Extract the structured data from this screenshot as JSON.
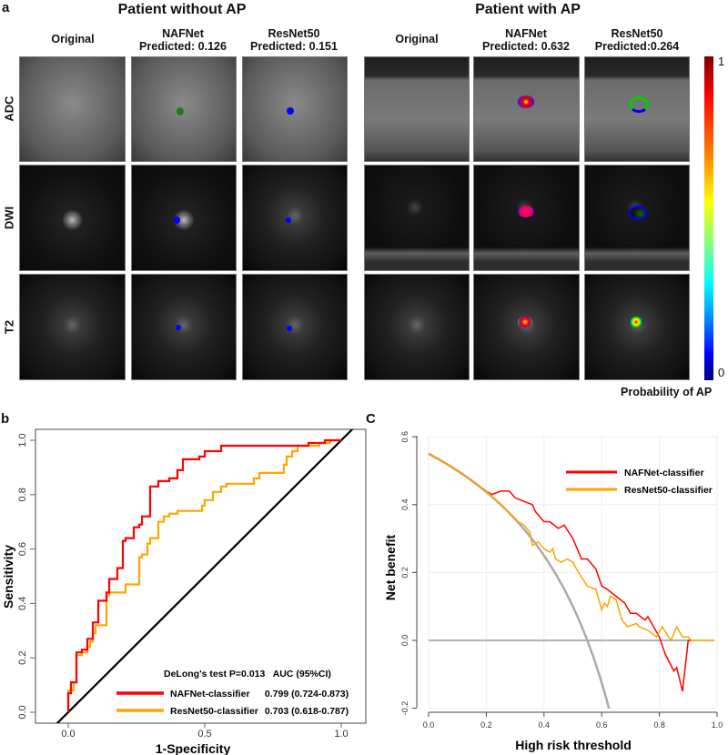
{
  "panel_labels": {
    "a": "a",
    "b": "b",
    "c": "C"
  },
  "panel_a": {
    "group_left": {
      "title": "Patient without AP",
      "columns": [
        {
          "line1": "Original",
          "line2": ""
        },
        {
          "line1": "NAFNet",
          "line2": "Predicted: 0.126"
        },
        {
          "line1": "ResNet50",
          "line2": "Predicted: 0.151"
        }
      ]
    },
    "group_right": {
      "title": "Patient with AP",
      "columns": [
        {
          "line1": "Original",
          "line2": ""
        },
        {
          "line1": "NAFNet",
          "line2": "Predicted: 0.632"
        },
        {
          "line1": "ResNet50",
          "line2": "Predicted:0.264"
        }
      ]
    },
    "rows": [
      "ADC",
      "DWI",
      "T2"
    ],
    "colorbar": {
      "max_label": "1",
      "min_label": "0",
      "title": "Probability of AP"
    }
  },
  "chart_data": [
    {
      "type": "line",
      "title": "",
      "xlabel": "1-Specificity",
      "ylabel": "Sensitivity",
      "xlim": [
        -0.1,
        1.07
      ],
      "ylim": [
        -0.04,
        1.04
      ],
      "xticks": [
        "0.0",
        "0.5",
        "1.0"
      ],
      "yticks": [
        "0.0",
        "0.2",
        "0.4",
        "0.6",
        "0.8",
        "1.0"
      ],
      "legend_header": "DeLong's test P=0.013   AUC (95%CI)",
      "legend_position": "bottom-right",
      "reference_line": {
        "name": "chance",
        "color": "#000000"
      },
      "series": [
        {
          "name": "NAFNet-classifier",
          "auc": "0.799 (0.724-0.873)",
          "color": "#ff0000",
          "points": [
            [
              0,
              0
            ],
            [
              0,
              0.07
            ],
            [
              0.01,
              0.07
            ],
            [
              0.01,
              0.11
            ],
            [
              0.03,
              0.11
            ],
            [
              0.03,
              0.22
            ],
            [
              0.05,
              0.22
            ],
            [
              0.05,
              0.23
            ],
            [
              0.07,
              0.23
            ],
            [
              0.07,
              0.27
            ],
            [
              0.09,
              0.27
            ],
            [
              0.09,
              0.33
            ],
            [
              0.11,
              0.33
            ],
            [
              0.11,
              0.41
            ],
            [
              0.14,
              0.41
            ],
            [
              0.14,
              0.44
            ],
            [
              0.15,
              0.44
            ],
            [
              0.15,
              0.49
            ],
            [
              0.18,
              0.49
            ],
            [
              0.18,
              0.53
            ],
            [
              0.2,
              0.53
            ],
            [
              0.2,
              0.63
            ],
            [
              0.21,
              0.63
            ],
            [
              0.21,
              0.64
            ],
            [
              0.24,
              0.64
            ],
            [
              0.24,
              0.68
            ],
            [
              0.26,
              0.68
            ],
            [
              0.26,
              0.69
            ],
            [
              0.27,
              0.69
            ],
            [
              0.27,
              0.72
            ],
            [
              0.3,
              0.72
            ],
            [
              0.3,
              0.83
            ],
            [
              0.33,
              0.83
            ],
            [
              0.33,
              0.85
            ],
            [
              0.37,
              0.85
            ],
            [
              0.37,
              0.86
            ],
            [
              0.4,
              0.86
            ],
            [
              0.4,
              0.89
            ],
            [
              0.42,
              0.89
            ],
            [
              0.42,
              0.93
            ],
            [
              0.48,
              0.93
            ],
            [
              0.48,
              0.94
            ],
            [
              0.5,
              0.94
            ],
            [
              0.5,
              0.96
            ],
            [
              0.56,
              0.96
            ],
            [
              0.56,
              0.98
            ],
            [
              0.88,
              0.98
            ],
            [
              0.88,
              0.99
            ],
            [
              0.94,
              0.99
            ],
            [
              0.94,
              1.0
            ],
            [
              1,
              1
            ]
          ]
        },
        {
          "name": "ResNet50-classifier",
          "auc": "0.703 (0.618-0.787)",
          "color": "#ffa500",
          "points": [
            [
              0,
              0
            ],
            [
              0,
              0.08
            ],
            [
              0.02,
              0.08
            ],
            [
              0.02,
              0.11
            ],
            [
              0.03,
              0.11
            ],
            [
              0.03,
              0.21
            ],
            [
              0.05,
              0.21
            ],
            [
              0.05,
              0.22
            ],
            [
              0.07,
              0.22
            ],
            [
              0.07,
              0.24
            ],
            [
              0.08,
              0.24
            ],
            [
              0.08,
              0.26
            ],
            [
              0.09,
              0.26
            ],
            [
              0.09,
              0.29
            ],
            [
              0.1,
              0.29
            ],
            [
              0.1,
              0.32
            ],
            [
              0.14,
              0.32
            ],
            [
              0.14,
              0.43
            ],
            [
              0.15,
              0.43
            ],
            [
              0.15,
              0.44
            ],
            [
              0.21,
              0.44
            ],
            [
              0.21,
              0.47
            ],
            [
              0.26,
              0.47
            ],
            [
              0.26,
              0.57
            ],
            [
              0.27,
              0.57
            ],
            [
              0.27,
              0.58
            ],
            [
              0.29,
              0.58
            ],
            [
              0.29,
              0.62
            ],
            [
              0.3,
              0.62
            ],
            [
              0.3,
              0.64
            ],
            [
              0.33,
              0.64
            ],
            [
              0.33,
              0.7
            ],
            [
              0.35,
              0.7
            ],
            [
              0.35,
              0.72
            ],
            [
              0.37,
              0.72
            ],
            [
              0.37,
              0.73
            ],
            [
              0.4,
              0.73
            ],
            [
              0.4,
              0.74
            ],
            [
              0.49,
              0.74
            ],
            [
              0.49,
              0.76
            ],
            [
              0.5,
              0.76
            ],
            [
              0.5,
              0.78
            ],
            [
              0.53,
              0.78
            ],
            [
              0.53,
              0.81
            ],
            [
              0.56,
              0.81
            ],
            [
              0.56,
              0.83
            ],
            [
              0.58,
              0.83
            ],
            [
              0.58,
              0.84
            ],
            [
              0.68,
              0.84
            ],
            [
              0.68,
              0.86
            ],
            [
              0.7,
              0.86
            ],
            [
              0.7,
              0.88
            ],
            [
              0.79,
              0.88
            ],
            [
              0.79,
              0.91
            ],
            [
              0.8,
              0.91
            ],
            [
              0.8,
              0.94
            ],
            [
              0.82,
              0.94
            ],
            [
              0.82,
              0.96
            ],
            [
              0.84,
              0.96
            ],
            [
              0.84,
              0.98
            ],
            [
              0.92,
              0.98
            ],
            [
              0.92,
              0.99
            ],
            [
              0.96,
              0.99
            ],
            [
              0.96,
              1.0
            ],
            [
              1,
              1
            ]
          ]
        }
      ]
    },
    {
      "type": "line",
      "title": "",
      "xlabel": "High risk threshold",
      "ylabel": "Net benefit",
      "xlim": [
        0,
        1
      ],
      "ylim": [
        -0.2,
        0.6
      ],
      "xticks": [
        "0.0",
        "0.2",
        "0.4",
        "0.6",
        "0.8",
        "1.0"
      ],
      "yticks": [
        "-0.2",
        "0.0",
        "0.2",
        "0.4",
        "0.6"
      ],
      "grid": true,
      "legend_position": "top-right",
      "treat_all": {
        "prevalence": 0.55,
        "color": "#aaaaaa"
      },
      "treat_none": {
        "value": 0,
        "color": "#999999"
      },
      "series": [
        {
          "name": "NAFNet-classifier",
          "color": "#ff0000",
          "points": [
            [
              0,
              0.55
            ],
            [
              0.05,
              0.526
            ],
            [
              0.1,
              0.5
            ],
            [
              0.15,
              0.47
            ],
            [
              0.2,
              0.44
            ],
            [
              0.22,
              0.43
            ],
            [
              0.25,
              0.44
            ],
            [
              0.28,
              0.44
            ],
            [
              0.3,
              0.42
            ],
            [
              0.33,
              0.41
            ],
            [
              0.36,
              0.4
            ],
            [
              0.37,
              0.38
            ],
            [
              0.4,
              0.35
            ],
            [
              0.42,
              0.35
            ],
            [
              0.45,
              0.33
            ],
            [
              0.47,
              0.34
            ],
            [
              0.5,
              0.3
            ],
            [
              0.53,
              0.24
            ],
            [
              0.55,
              0.24
            ],
            [
              0.57,
              0.22
            ],
            [
              0.58,
              0.21
            ],
            [
              0.6,
              0.16
            ],
            [
              0.62,
              0.15
            ],
            [
              0.65,
              0.13
            ],
            [
              0.68,
              0.11
            ],
            [
              0.7,
              0.08
            ],
            [
              0.72,
              0.08
            ],
            [
              0.75,
              0.06
            ],
            [
              0.76,
              0.07
            ],
            [
              0.78,
              0.04
            ],
            [
              0.8,
              0.01
            ],
            [
              0.82,
              -0.04
            ],
            [
              0.85,
              -0.09
            ],
            [
              0.86,
              -0.08
            ],
            [
              0.88,
              -0.15
            ],
            [
              0.9,
              0.0
            ],
            [
              0.91,
              0.0
            ]
          ]
        },
        {
          "name": "ResNet50-classifier",
          "color": "#ffa500",
          "points": [
            [
              0,
              0.55
            ],
            [
              0.05,
              0.526
            ],
            [
              0.1,
              0.5
            ],
            [
              0.15,
              0.47
            ],
            [
              0.2,
              0.44
            ],
            [
              0.25,
              0.4
            ],
            [
              0.3,
              0.36
            ],
            [
              0.31,
              0.35
            ],
            [
              0.33,
              0.34
            ],
            [
              0.35,
              0.32
            ],
            [
              0.36,
              0.28
            ],
            [
              0.38,
              0.29
            ],
            [
              0.4,
              0.27
            ],
            [
              0.42,
              0.26
            ],
            [
              0.43,
              0.27
            ],
            [
              0.44,
              0.24
            ],
            [
              0.46,
              0.23
            ],
            [
              0.48,
              0.24
            ],
            [
              0.5,
              0.23
            ],
            [
              0.52,
              0.2
            ],
            [
              0.55,
              0.16
            ],
            [
              0.58,
              0.15
            ],
            [
              0.6,
              0.09
            ],
            [
              0.61,
              0.11
            ],
            [
              0.62,
              0.1
            ],
            [
              0.63,
              0.13
            ],
            [
              0.65,
              0.12
            ],
            [
              0.67,
              0.06
            ],
            [
              0.69,
              0.04
            ],
            [
              0.72,
              0.05
            ],
            [
              0.73,
              0.04
            ],
            [
              0.76,
              0.03
            ],
            [
              0.79,
              0.01
            ],
            [
              0.81,
              0.04
            ],
            [
              0.84,
              0.0
            ],
            [
              0.86,
              0.04
            ],
            [
              0.88,
              0.01
            ],
            [
              0.9,
              0.01
            ],
            [
              0.91,
              0.0
            ],
            [
              0.99,
              0.0
            ]
          ]
        }
      ]
    }
  ]
}
